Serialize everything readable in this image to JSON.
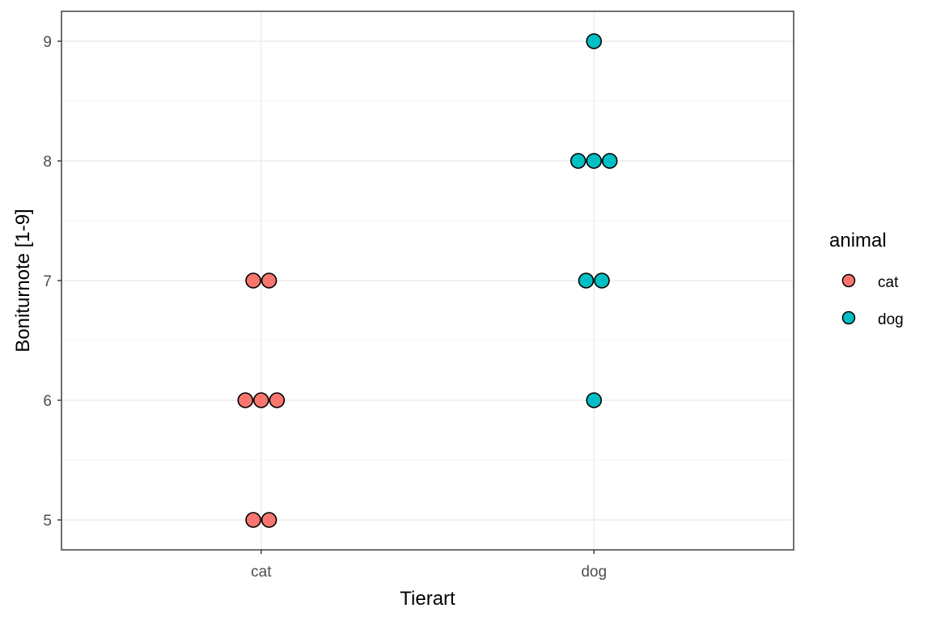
{
  "chart_data": {
    "type": "scatter",
    "subtype": "dotplot",
    "title": "",
    "xlabel": "Tierart",
    "ylabel": "Boniturnote [1-9]",
    "categories": [
      "cat",
      "dog"
    ],
    "ylim": [
      4.75,
      9.25
    ],
    "yticks": [
      5,
      6,
      7,
      8,
      9
    ],
    "grid": true,
    "legend": {
      "title": "animal",
      "position": "right",
      "entries": [
        {
          "label": "cat",
          "color": "#f8766d"
        },
        {
          "label": "dog",
          "color": "#00bfc4"
        }
      ]
    },
    "series": [
      {
        "name": "cat",
        "color": "#f8766d",
        "values": [
          5,
          5,
          6,
          6,
          6,
          7,
          7
        ]
      },
      {
        "name": "dog",
        "color": "#00bfc4",
        "values": [
          6,
          7,
          7,
          8,
          8,
          8,
          9
        ]
      }
    ]
  }
}
